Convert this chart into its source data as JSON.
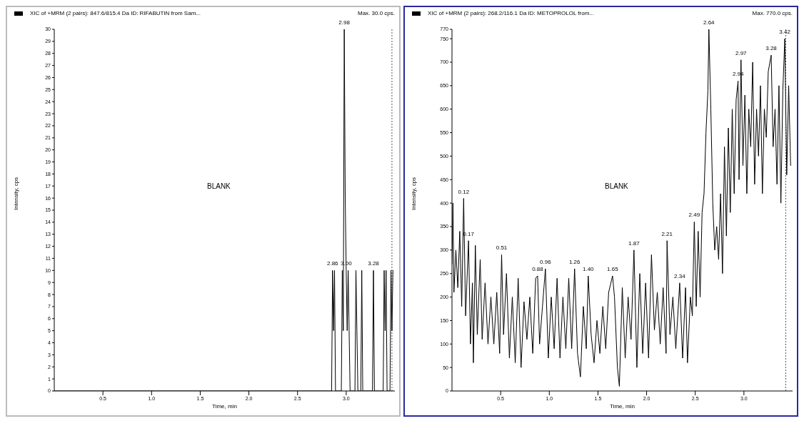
{
  "chart_data": [
    {
      "type": "line",
      "title": "XIC of +MRM (2 pairs): 847.6/815.4 Da ID: RIFABUTIN from Sam...",
      "subtitle": "Max. 30.0 cps.",
      "xlabel": "Time, min",
      "ylabel": "Intensity, cps",
      "x": [
        0,
        2.85,
        2.86,
        2.87,
        2.88,
        2.89,
        2.95,
        2.96,
        2.97,
        2.98,
        2.99,
        3.0,
        3.01,
        3.02,
        3.03,
        3.04,
        3.09,
        3.1,
        3.11,
        3.12,
        3.15,
        3.16,
        3.17,
        3.27,
        3.28,
        3.29,
        3.38,
        3.39,
        3.4,
        3.41,
        3.42,
        3.45,
        3.46,
        3.47,
        3.48
      ],
      "series": [
        {
          "color": "#000000",
          "values": [
            0,
            0,
            10,
            5,
            10,
            0,
            0,
            10,
            5,
            30,
            16,
            10,
            5,
            10,
            5,
            0,
            0,
            10,
            5,
            0,
            0,
            10,
            0,
            0,
            10,
            0,
            0,
            10,
            5,
            10,
            0,
            0,
            10,
            5,
            10
          ]
        }
      ],
      "xlim": [
        0,
        3.5
      ],
      "xticks": [
        {
          "value": 0.5,
          "label": "0.5"
        },
        {
          "value": 1,
          "label": "1.0"
        },
        {
          "value": 1.5,
          "label": "1.5"
        },
        {
          "value": 2,
          "label": "2.0"
        },
        {
          "value": 2.5,
          "label": "2.5"
        },
        {
          "value": 3,
          "label": "3.0"
        }
      ],
      "ylim": [
        0,
        30
      ],
      "yticks": [
        0,
        1,
        2,
        3,
        4,
        5,
        6,
        7,
        8,
        9,
        10,
        11,
        12,
        13,
        14,
        15,
        16,
        17,
        18,
        19,
        20,
        21,
        22,
        23,
        24,
        25,
        26,
        27,
        28,
        29,
        30
      ],
      "ref_lines": [
        {
          "axis": "x",
          "value": 3.47,
          "line_style": "dotted",
          "color": "#555555"
        }
      ],
      "annotations": [
        "BLANK",
        {
          "text": "2.98",
          "x": 2.98,
          "y": 30
        },
        {
          "text": "2.86",
          "x": 2.86,
          "y": 10
        },
        {
          "text": "3.00",
          "x": 3.0,
          "y": 10
        },
        {
          "text": "3.28",
          "x": 3.28,
          "y": 10
        }
      ],
      "grid": false,
      "legend": false,
      "marker": "none",
      "line_style": "solid"
    },
    {
      "type": "line",
      "title": "XIC of +MRM (2 pairs): 268.2/116.1 Da ID: METOPROLOL from...",
      "subtitle": "Max. 770.0 cps.",
      "xlabel": "Time, min",
      "ylabel": "Intensity, cps",
      "x": [
        0,
        0.01,
        0.02,
        0.04,
        0.06,
        0.08,
        0.1,
        0.12,
        0.14,
        0.17,
        0.19,
        0.21,
        0.22,
        0.24,
        0.26,
        0.29,
        0.31,
        0.34,
        0.37,
        0.4,
        0.43,
        0.46,
        0.49,
        0.51,
        0.53,
        0.56,
        0.59,
        0.62,
        0.65,
        0.68,
        0.71,
        0.74,
        0.77,
        0.8,
        0.83,
        0.86,
        0.88,
        0.9,
        0.93,
        0.96,
        0.99,
        1.02,
        1.05,
        1.08,
        1.11,
        1.14,
        1.17,
        1.2,
        1.23,
        1.26,
        1.29,
        1.32,
        1.35,
        1.38,
        1.4,
        1.43,
        1.46,
        1.49,
        1.52,
        1.55,
        1.58,
        1.61,
        1.65,
        1.67,
        1.7,
        1.72,
        1.75,
        1.78,
        1.81,
        1.84,
        1.87,
        1.9,
        1.93,
        1.96,
        1.99,
        2.02,
        2.05,
        2.08,
        2.11,
        2.14,
        2.17,
        2.2,
        2.21,
        2.24,
        2.27,
        2.3,
        2.34,
        2.37,
        2.4,
        2.42,
        2.45,
        2.47,
        2.49,
        2.51,
        2.53,
        2.55,
        2.57,
        2.59,
        2.61,
        2.63,
        2.64,
        2.66,
        2.68,
        2.7,
        2.72,
        2.74,
        2.76,
        2.78,
        2.8,
        2.82,
        2.84,
        2.86,
        2.88,
        2.9,
        2.92,
        2.94,
        2.95,
        2.97,
        2.99,
        3.01,
        3.03,
        3.05,
        3.07,
        3.09,
        3.11,
        3.13,
        3.15,
        3.17,
        3.19,
        3.21,
        3.23,
        3.25,
        3.28,
        3.3,
        3.32,
        3.34,
        3.36,
        3.38,
        3.4,
        3.42,
        3.44,
        3.46,
        3.48
      ],
      "series": [
        {
          "color": "#000000",
          "values": [
            270,
            400,
            210,
            300,
            220,
            340,
            180,
            410,
            160,
            320,
            100,
            230,
            60,
            310,
            120,
            280,
            110,
            230,
            100,
            200,
            100,
            210,
            80,
            290,
            120,
            250,
            70,
            200,
            60,
            240,
            50,
            190,
            110,
            200,
            80,
            240,
            245,
            100,
            180,
            260,
            70,
            200,
            90,
            240,
            70,
            200,
            90,
            240,
            90,
            260,
            80,
            30,
            180,
            90,
            245,
            120,
            60,
            150,
            80,
            180,
            90,
            210,
            245,
            200,
            50,
            10,
            220,
            70,
            200,
            110,
            300,
            50,
            250,
            80,
            230,
            70,
            290,
            130,
            210,
            100,
            220,
            80,
            320,
            120,
            200,
            90,
            230,
            70,
            220,
            60,
            200,
            160,
            360,
            180,
            340,
            200,
            380,
            420,
            550,
            640,
            770,
            600,
            400,
            300,
            350,
            280,
            420,
            250,
            520,
            330,
            560,
            380,
            600,
            420,
            620,
            660,
            450,
            705,
            480,
            630,
            420,
            600,
            520,
            700,
            440,
            600,
            500,
            650,
            420,
            600,
            540,
            680,
            715,
            520,
            600,
            440,
            650,
            400,
            640,
            750,
            460,
            650,
            480
          ]
        }
      ],
      "xlim": [
        0,
        3.5
      ],
      "xticks": [
        {
          "value": 0.5,
          "label": "0.5"
        },
        {
          "value": 1,
          "label": "1.0"
        },
        {
          "value": 1.5,
          "label": "1.5"
        },
        {
          "value": 2,
          "label": "2.0"
        },
        {
          "value": 2.5,
          "label": "2.5"
        },
        {
          "value": 3,
          "label": "3.0"
        }
      ],
      "ylim": [
        0,
        770
      ],
      "yticks": [
        0,
        50,
        100,
        150,
        200,
        250,
        300,
        350,
        400,
        450,
        500,
        550,
        600,
        650,
        700,
        750,
        770
      ],
      "ref_lines": [
        {
          "axis": "x",
          "value": 3.43,
          "line_style": "dotted",
          "color": "#555555"
        }
      ],
      "annotations": [
        "BLANK",
        {
          "text": "0.12",
          "x": 0.12,
          "y": 410
        },
        {
          "text": "0.17",
          "x": 0.17,
          "y": 320
        },
        {
          "text": "0.51",
          "x": 0.51,
          "y": 290
        },
        {
          "text": "0.88",
          "x": 0.88,
          "y": 245
        },
        {
          "text": "0.96",
          "x": 0.96,
          "y": 260
        },
        {
          "text": "1.26",
          "x": 1.26,
          "y": 260
        },
        {
          "text": "1.40",
          "x": 1.4,
          "y": 245
        },
        {
          "text": "1.65",
          "x": 1.65,
          "y": 245
        },
        {
          "text": "1.87",
          "x": 1.87,
          "y": 300
        },
        {
          "text": "2.21",
          "x": 2.21,
          "y": 320
        },
        {
          "text": "2.34",
          "x": 2.34,
          "y": 230
        },
        {
          "text": "2.49",
          "x": 2.49,
          "y": 360
        },
        {
          "text": "2.64",
          "x": 2.64,
          "y": 770
        },
        {
          "text": "2.94",
          "x": 2.94,
          "y": 660
        },
        {
          "text": "2.97",
          "x": 2.97,
          "y": 705
        },
        {
          "text": "3.28",
          "x": 3.28,
          "y": 715
        },
        {
          "text": "3.42",
          "x": 3.42,
          "y": 750
        }
      ],
      "grid": false,
      "legend": false,
      "marker": "none",
      "line_style": "solid"
    }
  ]
}
